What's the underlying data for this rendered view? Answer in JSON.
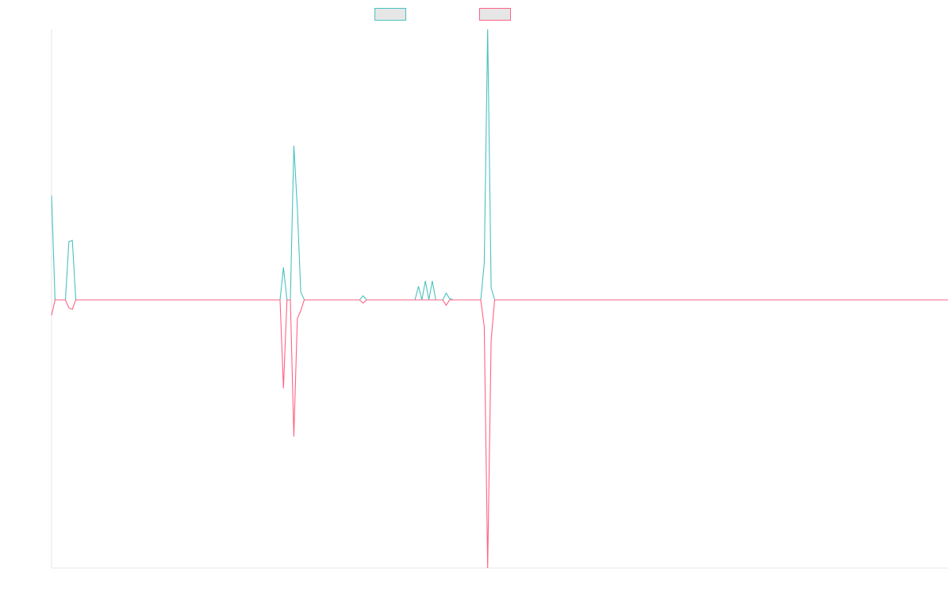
{
  "chart_data": {
    "type": "line",
    "title": "",
    "xlabel": "",
    "ylabel": "",
    "x_range": [
      0,
      259
    ],
    "ylim": [
      -1,
      1
    ],
    "grid": false,
    "legend": {
      "placement": "top-center",
      "entries": [
        "",
        ""
      ]
    },
    "series": [
      {
        "color": "#4bc0c0",
        "fill": "#e6e6e6",
        "points": [
          [
            0,
            0.385
          ],
          [
            1,
            0
          ],
          [
            4,
            0
          ],
          [
            5,
            0.215
          ],
          [
            6,
            0.22
          ],
          [
            7,
            0
          ],
          [
            66,
            0
          ],
          [
            67,
            0.12
          ],
          [
            68,
            0
          ],
          [
            69,
            0
          ],
          [
            70,
            0.57
          ],
          [
            71,
            0.34
          ],
          [
            72,
            0.03
          ],
          [
            73,
            0
          ],
          [
            89,
            0
          ],
          [
            90,
            0.015
          ],
          [
            91,
            0
          ],
          [
            105,
            0
          ],
          [
            106,
            0.05
          ],
          [
            107,
            0
          ],
          [
            108,
            0.07
          ],
          [
            109,
            0
          ],
          [
            110,
            0.07
          ],
          [
            111,
            0
          ],
          [
            113,
            0
          ],
          [
            114,
            0.025
          ],
          [
            115,
            0.005
          ],
          [
            116,
            0
          ],
          [
            124,
            0
          ],
          [
            125,
            0.135
          ],
          [
            126,
            1.0
          ],
          [
            127,
            0.045
          ],
          [
            128,
            0
          ],
          [
            259,
            0
          ]
        ]
      },
      {
        "color": "#ff6384",
        "fill": "#e6e6e6",
        "points": [
          [
            0,
            -0.058
          ],
          [
            1,
            0
          ],
          [
            4,
            0
          ],
          [
            5,
            -0.03
          ],
          [
            6,
            -0.035
          ],
          [
            7,
            0
          ],
          [
            66,
            0
          ],
          [
            67,
            -0.33
          ],
          [
            68,
            0
          ],
          [
            69,
            0
          ],
          [
            70,
            -0.51
          ],
          [
            71,
            -0.07
          ],
          [
            72,
            -0.04
          ],
          [
            73,
            0
          ],
          [
            89,
            0
          ],
          [
            90,
            -0.012
          ],
          [
            91,
            0
          ],
          [
            113,
            0
          ],
          [
            114,
            -0.02
          ],
          [
            115,
            0
          ],
          [
            124,
            0
          ],
          [
            125,
            -0.1
          ],
          [
            126,
            -1.0
          ],
          [
            127,
            -0.15
          ],
          [
            128,
            0
          ],
          [
            259,
            0
          ]
        ]
      }
    ]
  }
}
